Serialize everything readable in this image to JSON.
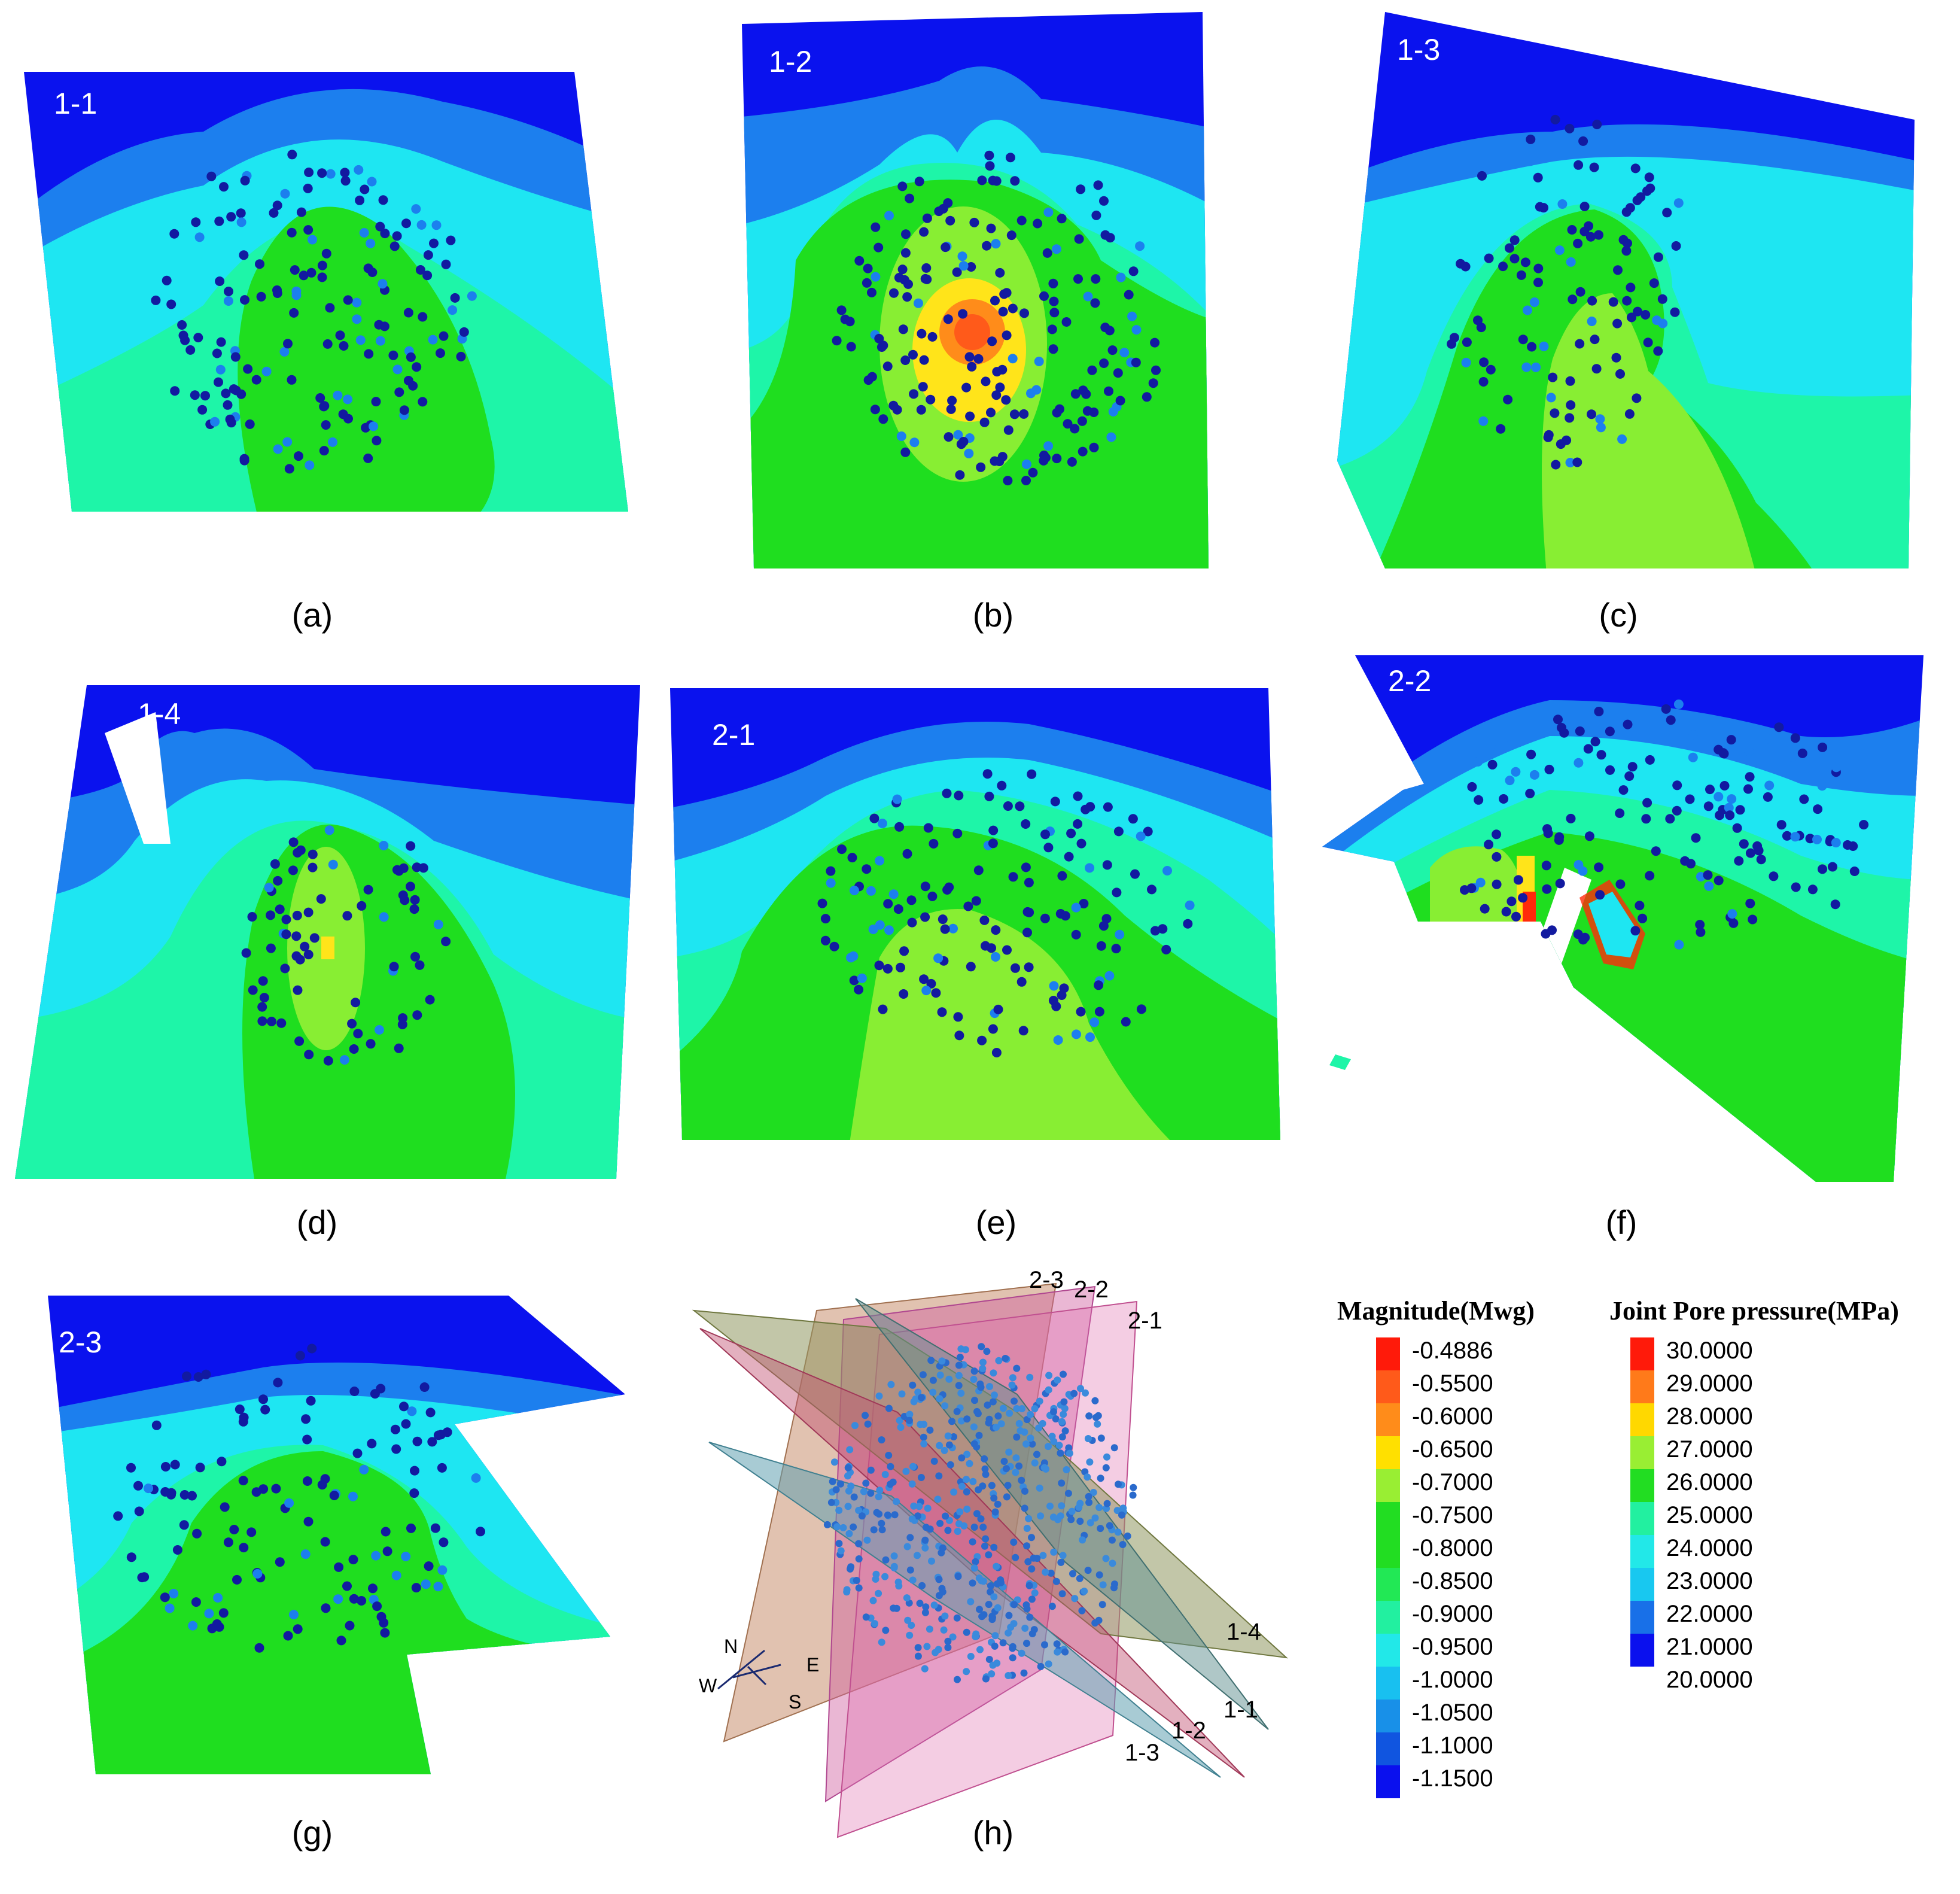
{
  "panels": [
    {
      "id": "a",
      "tag": "1-1",
      "caption": "(a)"
    },
    {
      "id": "b",
      "tag": "1-2",
      "caption": "(b)"
    },
    {
      "id": "c",
      "tag": "1-3",
      "caption": "(c)"
    },
    {
      "id": "d",
      "tag": "1-4",
      "caption": "(d)"
    },
    {
      "id": "e",
      "tag": "2-1",
      "caption": "(e)"
    },
    {
      "id": "f",
      "tag": "2-2",
      "caption": "(f)"
    },
    {
      "id": "g",
      "tag": "2-3",
      "caption": "(g)"
    },
    {
      "id": "h",
      "caption": "(h)"
    }
  ],
  "overview": {
    "plane_labels": [
      "2-3",
      "2-2",
      "2-1",
      "1-4",
      "1-1",
      "1-2",
      "1-3"
    ],
    "compass": {
      "north": "N",
      "east": "E",
      "south": "S",
      "west": "W"
    }
  },
  "legend_magnitude": {
    "title": "Magnitude(Mwg)",
    "values": [
      "-0.4886",
      "-0.5500",
      "-0.6000",
      "-0.6500",
      "-0.7000",
      "-0.7500",
      "-0.8000",
      "-0.8500",
      "-0.9000",
      "-0.9500",
      "-1.0000",
      "-1.0500",
      "-1.1000",
      "-1.1500"
    ],
    "colors": [
      "#ff1a0a",
      "#ff5a1a",
      "#ff8c1a",
      "#ffe000",
      "#99ee33",
      "#22dd22",
      "#22dd22",
      "#22e855",
      "#22f0a0",
      "#22e8e8",
      "#18c0f0",
      "#1890e8",
      "#1055e0",
      "#0a10ee"
    ]
  },
  "legend_pressure": {
    "title": "Joint Pore pressure(MPa)",
    "values": [
      "30.0000",
      "29.0000",
      "28.0000",
      "27.0000",
      "26.0000",
      "25.0000",
      "24.0000",
      "23.0000",
      "22.0000",
      "21.0000",
      "20.0000"
    ],
    "colors": [
      "#ff1a0a",
      "#ff7a1a",
      "#ffd800",
      "#99ee33",
      "#22dd22",
      "#22f0a0",
      "#22e8e8",
      "#18c8f0",
      "#1870e8",
      "#0a10ee"
    ]
  },
  "colors": {
    "blue": "#0a12ee",
    "mid_blue": "#1c7fee",
    "cyan": "#1ee6f2",
    "aqua": "#1ef5a8",
    "green": "#1fde1f",
    "lime": "#88ee33",
    "yellow": "#ffe41a",
    "orange": "#ff8c1a",
    "red": "#ff2a0a",
    "dot": "#121aa0"
  }
}
